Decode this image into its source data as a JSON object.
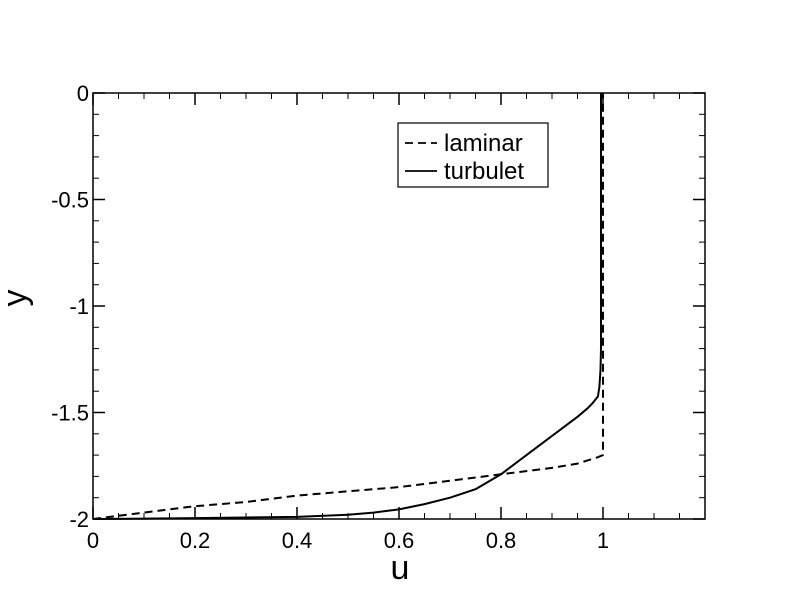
{
  "chart_data": {
    "type": "line",
    "title": "",
    "xlabel": "u",
    "ylabel": "y",
    "xlim": [
      0,
      1.2
    ],
    "ylim": [
      -2,
      0
    ],
    "x_ticks": [
      0,
      0.2,
      0.4,
      0.6,
      0.8,
      1
    ],
    "x_tick_labels": [
      "0",
      "0.2",
      "0.4",
      "0.6",
      "0.8",
      "1"
    ],
    "y_ticks": [
      0,
      -0.5,
      -1,
      -1.5,
      -2
    ],
    "y_tick_labels": [
      "0",
      "-0.5",
      "-1",
      "-1.5",
      "-2"
    ],
    "x_minor_step": 0.05,
    "y_minor_step": 0.1,
    "grid": false,
    "legend_position": "top-right",
    "series": [
      {
        "name": "laminar",
        "style": "dashed",
        "color": "#000000",
        "x": [
          0,
          0.1,
          0.2,
          0.3,
          0.4,
          0.5,
          0.6,
          0.7,
          0.8,
          0.9,
          0.95,
          0.99,
          1.0,
          1.0
        ],
        "y": [
          -2.0,
          -1.97,
          -1.94,
          -1.92,
          -1.89,
          -1.87,
          -1.85,
          -1.82,
          -1.79,
          -1.76,
          -1.74,
          -1.71,
          -1.7,
          0
        ]
      },
      {
        "name": "turbulet",
        "style": "solid",
        "color": "#000000",
        "x": [
          0,
          0.1,
          0.2,
          0.3,
          0.4,
          0.5,
          0.55,
          0.6,
          0.65,
          0.7,
          0.75,
          0.8,
          0.85,
          0.9,
          0.95,
          0.97,
          0.98,
          0.99,
          0.993,
          0.995,
          0.996,
          0.996
        ],
        "y": [
          -2.0,
          -1.998,
          -1.996,
          -1.993,
          -1.99,
          -1.98,
          -1.97,
          -1.955,
          -1.93,
          -1.9,
          -1.86,
          -1.79,
          -1.7,
          -1.61,
          -1.52,
          -1.48,
          -1.455,
          -1.425,
          -1.38,
          -1.3,
          -1.2,
          0
        ]
      }
    ]
  }
}
